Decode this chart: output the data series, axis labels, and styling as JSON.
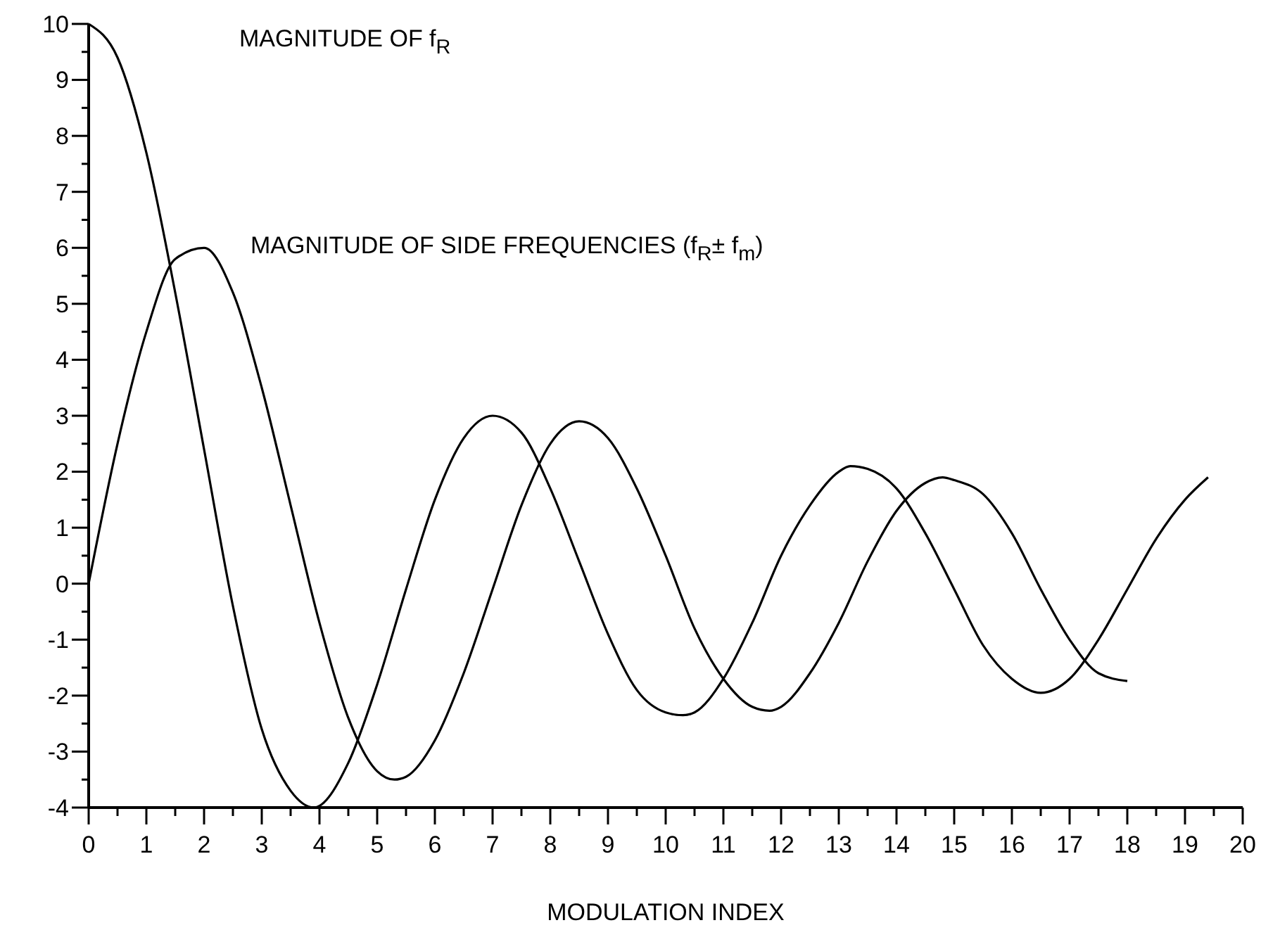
{
  "chart_data": {
    "type": "line",
    "xlabel": "MODULATION INDEX",
    "marker": "none",
    "line_style": "solid",
    "xlim": [
      0,
      20
    ],
    "ylim": [
      -4,
      10
    ],
    "xticks": [
      0,
      {
        "value": 0.5,
        "label": null
      },
      1,
      {
        "value": 1.5,
        "label": null
      },
      2,
      {
        "value": 2.5,
        "label": null
      },
      3,
      {
        "value": 3.5,
        "label": null
      },
      4,
      {
        "value": 4.5,
        "label": null
      },
      5,
      {
        "value": 5.5,
        "label": null
      },
      6,
      {
        "value": 6.5,
        "label": null
      },
      7,
      {
        "value": 7.5,
        "label": null
      },
      8,
      {
        "value": 8.5,
        "label": null
      },
      9,
      {
        "value": 9.5,
        "label": null
      },
      10,
      {
        "value": 10.5,
        "label": null
      },
      11,
      {
        "value": 11.5,
        "label": null
      },
      12,
      {
        "value": 12.5,
        "label": null
      },
      13,
      {
        "value": 13.5,
        "label": null
      },
      14,
      {
        "value": 14.5,
        "label": null
      },
      15,
      {
        "value": 15.5,
        "label": null
      },
      16,
      {
        "value": 16.5,
        "label": null
      },
      17,
      {
        "value": 17.5,
        "label": null
      },
      18,
      {
        "value": 18.5,
        "label": null
      },
      19,
      {
        "value": 19.5,
        "label": null
      },
      20
    ],
    "yticks": [
      -4,
      {
        "value": -3.5,
        "label": null
      },
      -3,
      {
        "value": -2.5,
        "label": null
      },
      -2,
      {
        "value": -1.5,
        "label": null
      },
      -1,
      {
        "value": -0.5,
        "label": null
      },
      0,
      {
        "value": 0.5,
        "label": null
      },
      1,
      {
        "value": 1.5,
        "label": null
      },
      2,
      {
        "value": 2.5,
        "label": null
      },
      3,
      {
        "value": 3.5,
        "label": null
      },
      4,
      {
        "value": 4.5,
        "label": null
      },
      5,
      {
        "value": 5.5,
        "label": null
      },
      6,
      {
        "value": 6.5,
        "label": null
      },
      7,
      {
        "value": 7.5,
        "label": null
      },
      8,
      {
        "value": 8.5,
        "label": null
      },
      9,
      {
        "value": 9.5,
        "label": null
      },
      10
    ],
    "series": [
      {
        "color": "#000000",
        "x": [
          0,
          0.5,
          1,
          1.5,
          2,
          2.5,
          3,
          3.5,
          3.9,
          4.5,
          5,
          5.5,
          6,
          6.5,
          7,
          7.5,
          8,
          8.5,
          9,
          9.5,
          10,
          10.3,
          10.5,
          11,
          11.5,
          12,
          12.5,
          13,
          13.2,
          13.5,
          14,
          14.5,
          15,
          15.5,
          16,
          16.5,
          17,
          17.5,
          18,
          18.5,
          19,
          19.4
        ],
        "values": [
          10,
          9.4,
          7.7,
          5.2,
          2.4,
          -0.4,
          -2.6,
          -3.7,
          -4,
          -3.2,
          -1.8,
          -0.1,
          1.5,
          2.6,
          3,
          2.7,
          1.7,
          0.4,
          -0.9,
          -1.9,
          -2.3,
          -2.35,
          -2.3,
          -1.7,
          -0.7,
          0.5,
          1.4,
          2,
          2.1,
          2.05,
          1.7,
          0.9,
          -0.1,
          -1.1,
          -1.7,
          -1.95,
          -1.7,
          -1,
          -0.1,
          0.8,
          1.5,
          1.9
        ]
      },
      {
        "color": "#000000",
        "x": [
          0,
          0.5,
          1,
          1.5,
          2,
          2.5,
          3,
          3.5,
          4,
          4.5,
          5,
          5.3,
          5.5,
          6,
          6.5,
          7,
          7.5,
          8,
          8.5,
          9,
          9.5,
          10,
          10.5,
          11,
          11.5,
          11.8,
          12,
          12.5,
          13,
          13.5,
          14,
          14.5,
          14.8,
          15,
          15.5,
          16,
          16.5,
          17,
          17.5,
          18
        ],
        "values": [
          0,
          2.5,
          4.5,
          5.8,
          6,
          5.2,
          3.5,
          1.4,
          -0.7,
          -2.4,
          -3.35,
          -3.5,
          -3.45,
          -2.8,
          -1.6,
          -0.1,
          1.4,
          2.5,
          2.9,
          2.6,
          1.7,
          0.5,
          -0.8,
          -1.7,
          -2.2,
          -2.27,
          -2.2,
          -1.6,
          -0.7,
          0.4,
          1.3,
          1.8,
          1.9,
          1.85,
          1.6,
          0.9,
          -0.1,
          -1,
          -1.6,
          -1.74
        ]
      }
    ],
    "annotations": [
      "MAGNITUDE OF f$_{R}$",
      "MAGNITUDE OF SIDE FREQUENCIES (f$_{R}$± f$_{m}$)"
    ]
  }
}
